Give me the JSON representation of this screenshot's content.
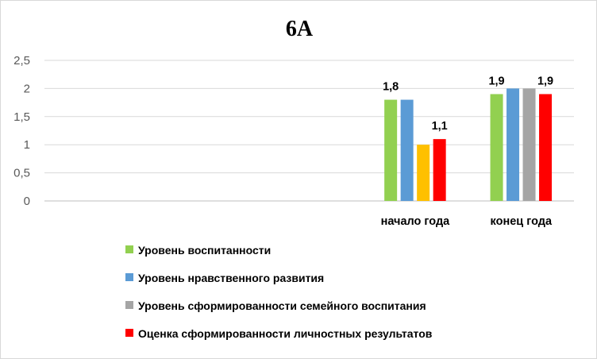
{
  "chart_data": {
    "type": "bar",
    "title": "6А",
    "categories": [
      "",
      "",
      "",
      "начало года",
      "конец года"
    ],
    "ylim": [
      0,
      2.5
    ],
    "yticks": [
      "0",
      "0,5",
      "1",
      "1,5",
      "2",
      "2,5"
    ],
    "grid": true,
    "legend_position": "bottom",
    "series": [
      {
        "name": "Уровень воспитанности",
        "color": "#92d050",
        "values": [
          null,
          null,
          null,
          1.8,
          1.9
        ]
      },
      {
        "name": "Уровень нравственного развития",
        "color": "#5b9bd5",
        "values": [
          null,
          null,
          null,
          1.8,
          2.0
        ]
      },
      {
        "name": "Уровень сформированности семейного воспитания",
        "color": "#a5a5a5",
        "values": [
          null,
          null,
          null,
          null,
          2.0
        ]
      },
      {
        "name": "",
        "color": "#ffc000",
        "values": [
          null,
          null,
          null,
          1.0,
          null
        ]
      },
      {
        "name": "Оценка сформированности личностных результатов",
        "color": "#ff0000",
        "values": [
          null,
          null,
          null,
          1.1,
          1.9
        ]
      }
    ],
    "data_labels": [
      {
        "series": 0,
        "category": 3,
        "text": "1,8"
      },
      {
        "series": 4,
        "category": 3,
        "text": "1,1"
      },
      {
        "series": 0,
        "category": 4,
        "text": "1,9"
      },
      {
        "series": 4,
        "category": 4,
        "text": "1,9"
      }
    ]
  }
}
